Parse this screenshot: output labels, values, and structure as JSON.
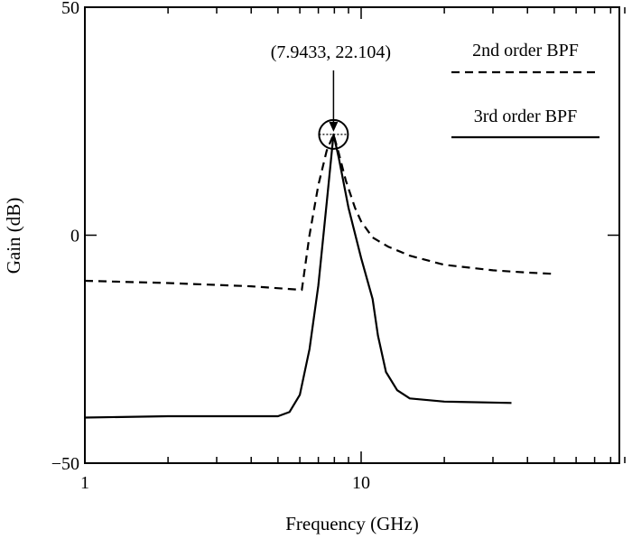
{
  "chart_data": {
    "type": "line",
    "title": "",
    "xlabel": "Frequency (GHz)",
    "ylabel": "Gain (dB)",
    "xscale": "log",
    "xlim": [
      1,
      90
    ],
    "ylim": [
      -50,
      50
    ],
    "x_ticks": [
      {
        "value": 1,
        "label": "1"
      },
      {
        "value": 10,
        "label": "10"
      }
    ],
    "y_ticks": [
      {
        "value": 50,
        "label": "50"
      },
      {
        "value": 0,
        "label": "0"
      },
      {
        "value": -50,
        "label": "−50"
      }
    ],
    "grid": false,
    "legend_position": "top-right",
    "series": [
      {
        "name": "2nd order BPF",
        "style": "dashed",
        "color": "#000000",
        "points": [
          [
            1,
            -10
          ],
          [
            2,
            -10.5
          ],
          [
            4,
            -11.2
          ],
          [
            6.1,
            -12
          ],
          [
            6.5,
            0
          ],
          [
            7,
            11
          ],
          [
            7.5,
            18.5
          ],
          [
            7.9433,
            22.104
          ],
          [
            8.3,
            18
          ],
          [
            8.8,
            12
          ],
          [
            9.5,
            6
          ],
          [
            10,
            3
          ],
          [
            11,
            -0.5
          ],
          [
            12.5,
            -2.5
          ],
          [
            15,
            -4.5
          ],
          [
            20,
            -6.5
          ],
          [
            30,
            -7.7
          ],
          [
            40,
            -8.2
          ],
          [
            50,
            -8.5
          ]
        ]
      },
      {
        "name": "3rd order BPF",
        "style": "solid",
        "color": "#000000",
        "points": [
          [
            1,
            -40
          ],
          [
            2,
            -39.7
          ],
          [
            3,
            -39.7
          ],
          [
            5,
            -39.7
          ],
          [
            5.5,
            -38.8
          ],
          [
            6,
            -35
          ],
          [
            6.5,
            -25
          ],
          [
            7,
            -11
          ],
          [
            7.5,
            7
          ],
          [
            7.9433,
            22.104
          ],
          [
            8.3,
            17
          ],
          [
            9,
            6
          ],
          [
            10,
            -5
          ],
          [
            11,
            -14
          ],
          [
            11.5,
            -22
          ],
          [
            12.3,
            -30
          ],
          [
            13.5,
            -34
          ],
          [
            15,
            -35.8
          ],
          [
            20,
            -36.5
          ],
          [
            35,
            -36.8
          ]
        ]
      }
    ],
    "annotation": {
      "label": "(7.9433, 22.104)",
      "x": 7.9433,
      "y": 22.104
    }
  }
}
